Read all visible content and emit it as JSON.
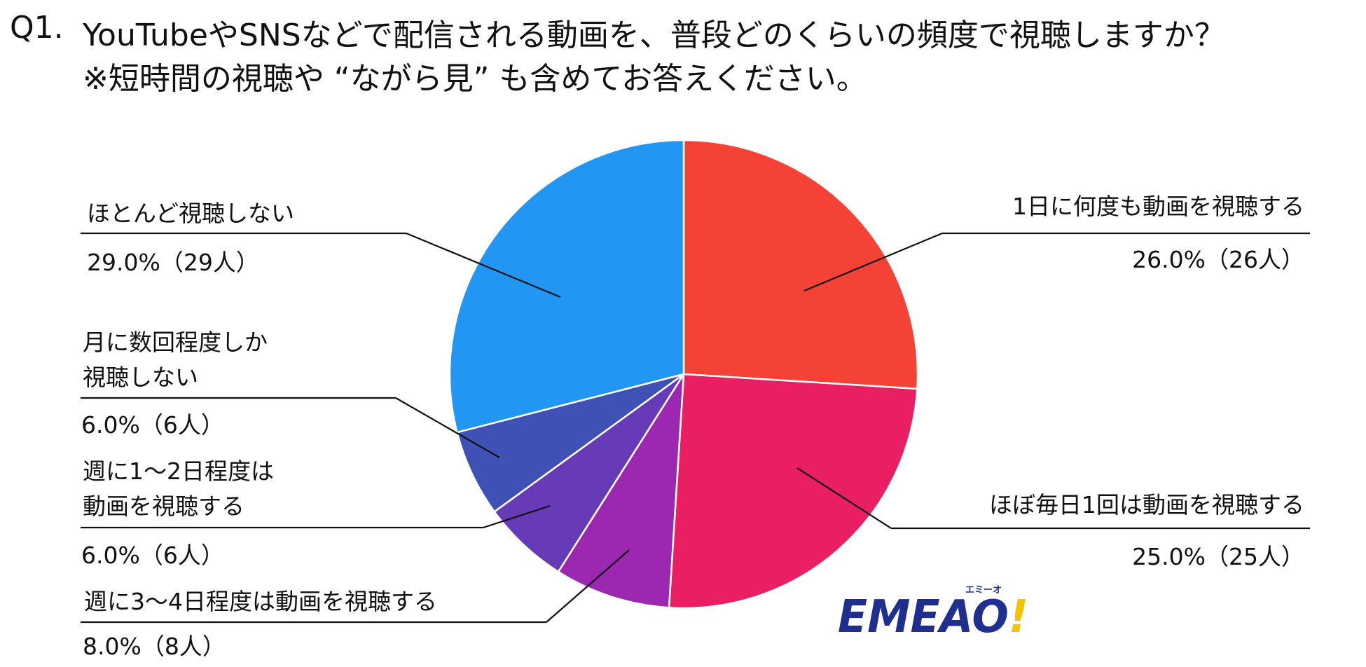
{
  "question": {
    "number": "Q1.",
    "line1": "YouTubeやSNSなどで配信される動画を、普段どのくらいの頻度で視聴しますか？",
    "line2": "※短時間の視聴や “ながら見” も含めてお答えください。"
  },
  "chart_data": {
    "type": "pie",
    "start_angle_deg": 0,
    "direction": "clockwise",
    "slices": [
      {
        "label": "1日に何度も動画を視聴する",
        "value": 26.0,
        "count": "26人",
        "display": "26.0%（26人）",
        "color": "#f44336"
      },
      {
        "label": "ほぼ毎日1回は動画を視聴する",
        "value": 25.0,
        "count": "25人",
        "display": "25.0%（25人）",
        "color": "#e91e63"
      },
      {
        "label": "週に3〜4日程度は動画を視聴する",
        "value": 8.0,
        "count": "8人",
        "display": "8.0%（8人）",
        "color": "#9c27b0"
      },
      {
        "label": "週に1〜2日程度は動画を視聴する",
        "value": 6.0,
        "count": "6人",
        "display": "6.0%（6人）",
        "color": "#673ab7"
      },
      {
        "label": "月に数回程度しか視聴しない",
        "value": 6.0,
        "count": "6人",
        "display": "6.0%（6人）",
        "color": "#3f51b5"
      },
      {
        "label": "ほとんど視聴しない",
        "value": 29.0,
        "count": "29人",
        "display": "29.0%（29人）",
        "color": "#2196f3"
      }
    ]
  },
  "labels": {
    "s0": {
      "line1": "1日に何度も動画を視聴する"
    },
    "s1": {
      "line1": "ほぼ毎日1回は動画を視聴する"
    },
    "s2": {
      "line1": "週に3〜4日程度は動画を視聴する"
    },
    "s3": {
      "line1": "週に1〜2日程度は",
      "line2": "動画を視聴する"
    },
    "s4": {
      "line1": "月に数回程度しか",
      "line2": "視聴しない"
    },
    "s5": {
      "line1": "ほとんど視聴しない"
    }
  },
  "logo": {
    "text": "EMEAO!",
    "subtext": "エミーオ",
    "color_main": "#1f2f8f",
    "color_accent": "#f5c400"
  }
}
